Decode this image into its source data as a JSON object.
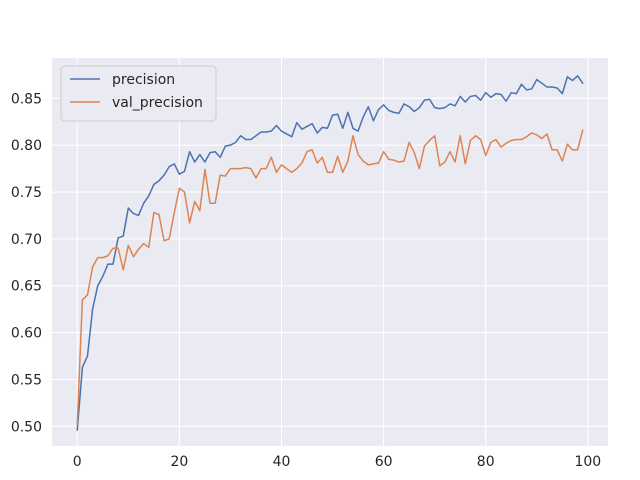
{
  "chart_data": {
    "type": "line",
    "title": "",
    "xlabel": "",
    "ylabel": "",
    "xlim": [
      -4.95,
      103.95
    ],
    "ylim": [
      0.479,
      0.893
    ],
    "xticks": [
      0,
      20,
      40,
      60,
      80,
      100
    ],
    "yticks": [
      0.5,
      0.55,
      0.6,
      0.65,
      0.7,
      0.75,
      0.8,
      0.85
    ],
    "grid": true,
    "background": "#eaeaf2",
    "legend_position": "upper-left",
    "series": [
      {
        "name": "precision",
        "color": "#4c72b0",
        "x": [
          0,
          1,
          2,
          3,
          4,
          5,
          6,
          7,
          8,
          9,
          10,
          11,
          12,
          13,
          14,
          15,
          16,
          17,
          18,
          19,
          20,
          21,
          22,
          23,
          24,
          25,
          26,
          27,
          28,
          29,
          30,
          31,
          32,
          33,
          34,
          35,
          36,
          37,
          38,
          39,
          40,
          41,
          42,
          43,
          44,
          45,
          46,
          47,
          48,
          49,
          50,
          51,
          52,
          53,
          54,
          55,
          56,
          57,
          58,
          59,
          60,
          61,
          62,
          63,
          64,
          65,
          66,
          67,
          68,
          69,
          70,
          71,
          72,
          73,
          74,
          75,
          76,
          77,
          78,
          79,
          80,
          81,
          82,
          83,
          84,
          85,
          86,
          87,
          88,
          89,
          90,
          91,
          92,
          93,
          94,
          95,
          96,
          97,
          98,
          99
        ],
        "values": [
          0.496,
          0.563,
          0.575,
          0.625,
          0.65,
          0.66,
          0.673,
          0.673,
          0.701,
          0.703,
          0.733,
          0.727,
          0.725,
          0.738,
          0.746,
          0.758,
          0.762,
          0.768,
          0.777,
          0.78,
          0.769,
          0.772,
          0.793,
          0.782,
          0.79,
          0.782,
          0.792,
          0.793,
          0.787,
          0.799,
          0.8,
          0.803,
          0.81,
          0.806,
          0.806,
          0.81,
          0.814,
          0.814,
          0.815,
          0.821,
          0.815,
          0.812,
          0.809,
          0.824,
          0.817,
          0.82,
          0.823,
          0.813,
          0.819,
          0.818,
          0.832,
          0.833,
          0.818,
          0.835,
          0.818,
          0.815,
          0.83,
          0.841,
          0.826,
          0.838,
          0.843,
          0.837,
          0.835,
          0.834,
          0.844,
          0.841,
          0.836,
          0.84,
          0.848,
          0.849,
          0.84,
          0.839,
          0.84,
          0.844,
          0.842,
          0.852,
          0.846,
          0.852,
          0.853,
          0.848,
          0.856,
          0.851,
          0.855,
          0.854,
          0.847,
          0.856,
          0.855,
          0.865,
          0.859,
          0.86,
          0.87,
          0.866,
          0.862,
          0.862,
          0.861,
          0.855,
          0.873,
          0.869,
          0.874,
          0.866
        ]
      },
      {
        "name": "val_precision",
        "color": "#dd8452",
        "x": [
          0,
          1,
          2,
          3,
          4,
          5,
          6,
          7,
          8,
          9,
          10,
          11,
          12,
          13,
          14,
          15,
          16,
          17,
          18,
          19,
          20,
          21,
          22,
          23,
          24,
          25,
          26,
          27,
          28,
          29,
          30,
          31,
          32,
          33,
          34,
          35,
          36,
          37,
          38,
          39,
          40,
          41,
          42,
          43,
          44,
          45,
          46,
          47,
          48,
          49,
          50,
          51,
          52,
          53,
          54,
          55,
          56,
          57,
          58,
          59,
          60,
          61,
          62,
          63,
          64,
          65,
          66,
          67,
          68,
          69,
          70,
          71,
          72,
          73,
          74,
          75,
          76,
          77,
          78,
          79,
          80,
          81,
          82,
          83,
          84,
          85,
          86,
          87,
          88,
          89,
          90,
          91,
          92,
          93,
          94,
          95,
          96,
          97,
          98,
          99
        ],
        "values": [
          0.502,
          0.635,
          0.64,
          0.67,
          0.68,
          0.68,
          0.682,
          0.69,
          0.69,
          0.667,
          0.693,
          0.681,
          0.689,
          0.695,
          0.691,
          0.728,
          0.726,
          0.698,
          0.7,
          0.728,
          0.754,
          0.75,
          0.717,
          0.74,
          0.73,
          0.774,
          0.738,
          0.738,
          0.768,
          0.767,
          0.775,
          0.775,
          0.775,
          0.776,
          0.775,
          0.765,
          0.775,
          0.775,
          0.787,
          0.771,
          0.779,
          0.775,
          0.771,
          0.775,
          0.781,
          0.793,
          0.795,
          0.781,
          0.787,
          0.771,
          0.771,
          0.788,
          0.771,
          0.783,
          0.81,
          0.79,
          0.783,
          0.779,
          0.78,
          0.781,
          0.793,
          0.785,
          0.784,
          0.782,
          0.783,
          0.803,
          0.792,
          0.775,
          0.799,
          0.805,
          0.81,
          0.778,
          0.782,
          0.793,
          0.782,
          0.81,
          0.78,
          0.805,
          0.81,
          0.806,
          0.789,
          0.803,
          0.806,
          0.798,
          0.802,
          0.805,
          0.806,
          0.806,
          0.809,
          0.813,
          0.811,
          0.807,
          0.812,
          0.795,
          0.795,
          0.783,
          0.801,
          0.795,
          0.795,
          0.816
        ]
      }
    ]
  }
}
